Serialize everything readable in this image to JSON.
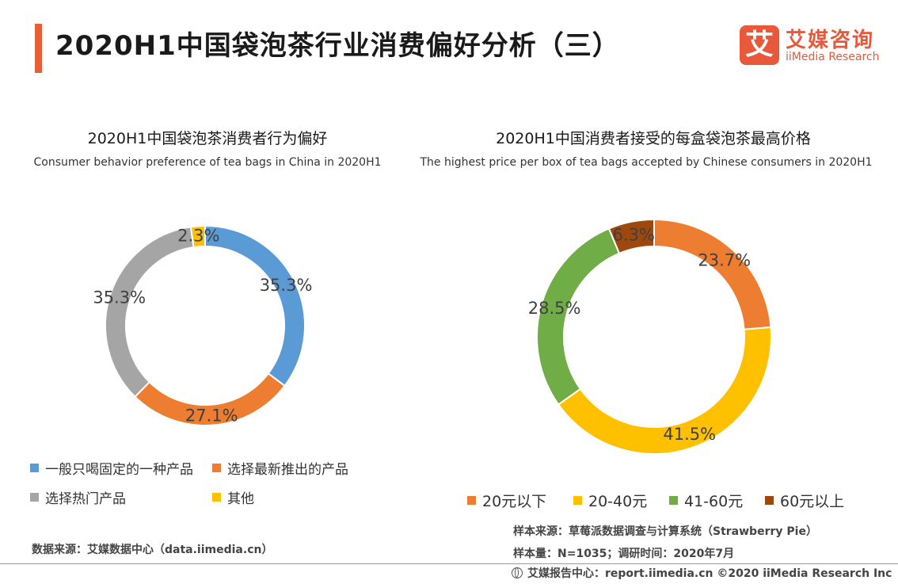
{
  "page": {
    "title": "2020H1中国袋泡茶行业消费偏好分析（三）"
  },
  "logo": {
    "mark": "艾",
    "name_cn": "艾媒咨询",
    "name_en": "iiMedia Research"
  },
  "colors": {
    "accent": "#ec5d33",
    "blue": "#5b9bd5",
    "orange": "#ed7d31",
    "gray": "#a5a5a5",
    "yellow": "#ffc000",
    "green": "#70ad47",
    "brown": "#9e480e"
  },
  "chart_data": [
    {
      "type": "pie",
      "variant": "donut",
      "title": "2020H1中国袋泡茶消费者行为偏好",
      "subtitle": "Consumer behavior preference of tea bags in China in 2020H1",
      "categories": [
        "一般只喝固定的一种产品",
        "选择最新推出的产品",
        "选择热门产品",
        "其他"
      ],
      "values": [
        35.3,
        27.1,
        35.3,
        2.3
      ],
      "labels": [
        "35.3%",
        "27.1%",
        "35.3%",
        "2.3%"
      ],
      "colors": [
        "#5b9bd5",
        "#ed7d31",
        "#a5a5a5",
        "#ffc000"
      ],
      "legend_position": "bottom"
    },
    {
      "type": "pie",
      "variant": "donut",
      "title": "2020H1中国消费者接受的每盒袋泡茶最高价格",
      "subtitle": "The highest price per box of tea bags accepted by Chinese consumers in 2020H1",
      "categories": [
        "20元以下",
        "20-40元",
        "41-60元",
        "60元以上"
      ],
      "values": [
        23.7,
        41.5,
        28.5,
        6.3
      ],
      "labels": [
        "23.7%",
        "41.5%",
        "28.5%",
        "6.3%"
      ],
      "colors": [
        "#ed7d31",
        "#ffc000",
        "#70ad47",
        "#9e480e"
      ],
      "legend_position": "bottom"
    }
  ],
  "source": {
    "left": "数据来源：艾媒数据中心（data.iimedia.cn）",
    "sample_source": "样本来源：草莓派数据调查与计算系统（Strawberry Pie）",
    "sample_size": "样本量：N=1035；调研时间：2020年7月"
  },
  "footer": {
    "text": "艾媒报告中心：report.iimedia.cn  ©2020  iiMedia Research  Inc"
  }
}
